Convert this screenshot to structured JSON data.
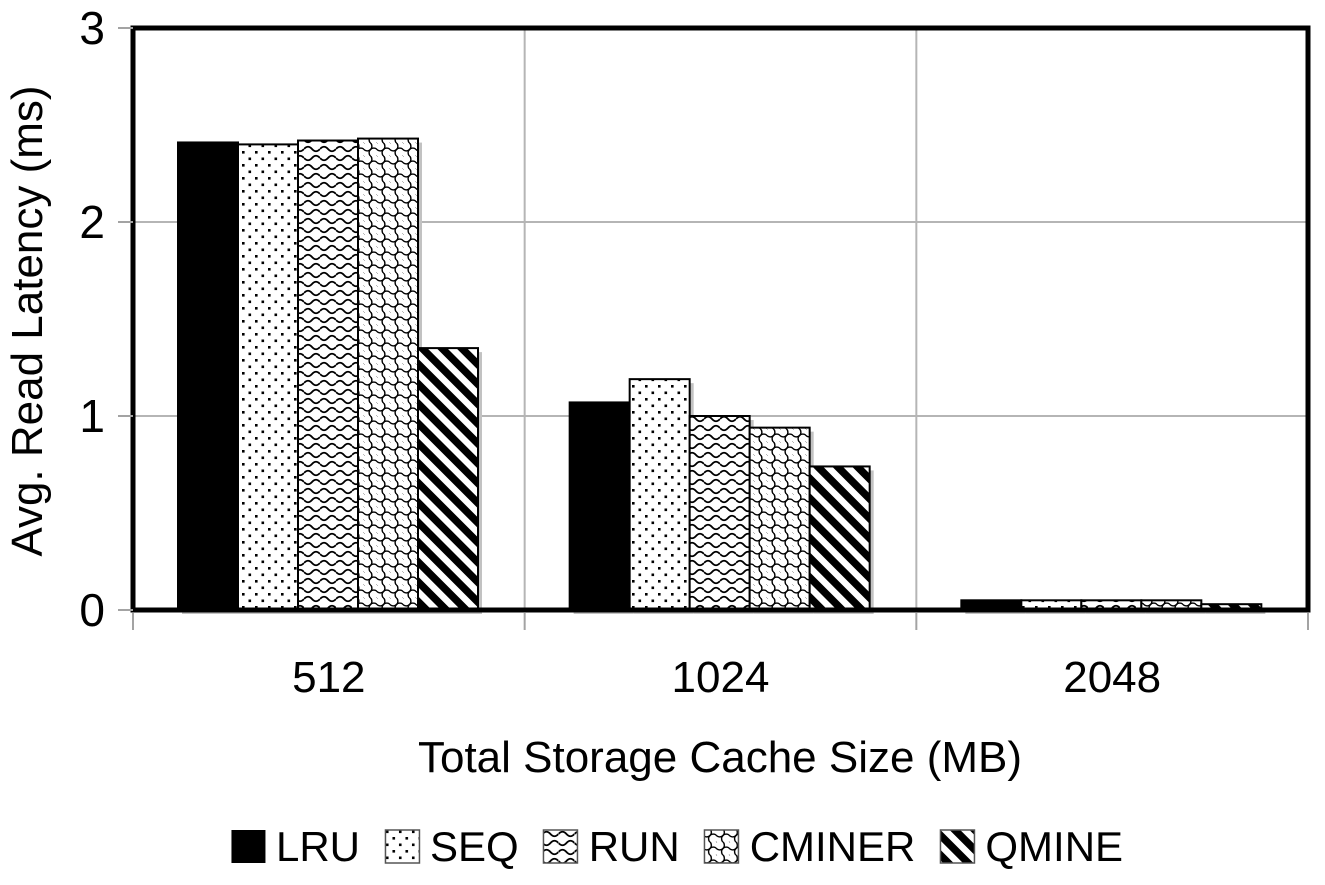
{
  "chart_data": {
    "type": "bar",
    "title": "",
    "xlabel": "Total Storage Cache Size (MB)",
    "ylabel": "Avg. Read Latency (ms)",
    "categories": [
      "512",
      "1024",
      "2048"
    ],
    "series": [
      {
        "name": "LRU",
        "pattern": "solid",
        "values": [
          2.41,
          1.07,
          0.05
        ]
      },
      {
        "name": "SEQ",
        "pattern": "dots",
        "values": [
          2.4,
          1.19,
          0.05
        ]
      },
      {
        "name": "RUN",
        "pattern": "waves",
        "values": [
          2.42,
          1.0,
          0.05
        ]
      },
      {
        "name": "CMINER",
        "pattern": "scales",
        "values": [
          2.43,
          0.94,
          0.05
        ]
      },
      {
        "name": "QMINE",
        "pattern": "diagonal-stripes",
        "values": [
          1.35,
          0.74,
          0.03
        ]
      }
    ],
    "ylim": [
      0,
      3
    ],
    "yticks": [
      "0",
      "1",
      "2",
      "3"
    ],
    "grid": true,
    "legend_position": "bottom",
    "colors": {
      "bar_fill": "#000000",
      "bar_stroke": "#000000",
      "shadow": "#c2c2c2",
      "gridline": "#b5b5b5",
      "tick": "#a3a3a3",
      "border": "#000000",
      "background": "#ffffff"
    }
  }
}
